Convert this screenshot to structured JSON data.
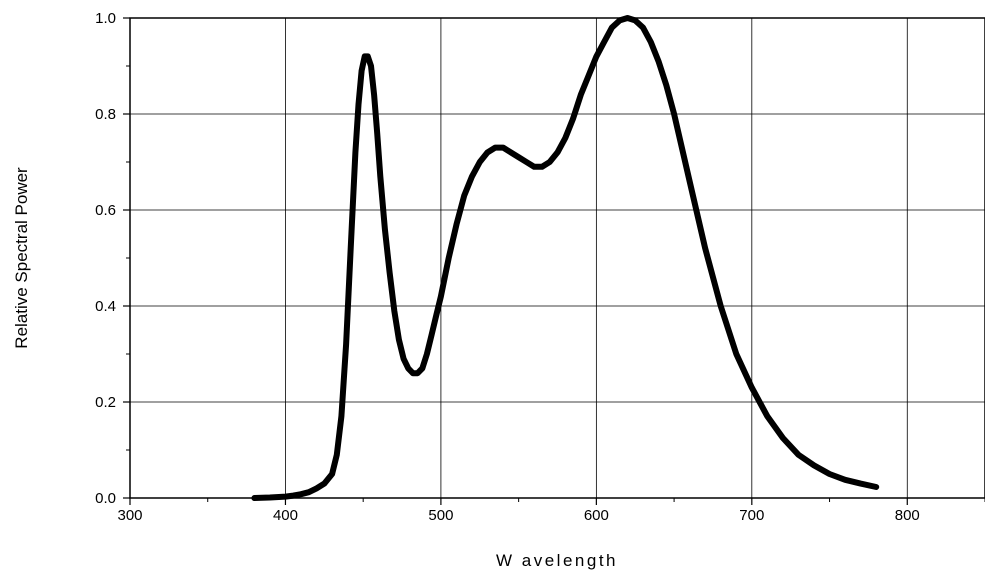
{
  "chart_data": {
    "type": "line",
    "title": "",
    "xlabel": "W avelength",
    "ylabel": "Relative Spectral Power",
    "xlim": [
      300,
      850
    ],
    "ylim": [
      0,
      1.0
    ],
    "xticks": [
      300,
      400,
      500,
      600,
      700,
      800
    ],
    "xtick_labels": [
      "300",
      "400",
      "500",
      "600",
      "700",
      "800"
    ],
    "yticks": [
      0,
      0.2,
      0.4,
      0.6,
      0.8,
      1.0
    ],
    "ytick_labels": [
      "0.0",
      "0.2",
      "0.4",
      "0.6",
      "0.8",
      "1.0"
    ],
    "grid": true,
    "legend": "none",
    "line_color": "#000000",
    "series": [
      {
        "x": [
          380,
          390,
          400,
          405,
          410,
          415,
          420,
          425,
          430,
          433,
          436,
          439,
          442,
          445,
          447,
          449,
          451,
          453,
          455,
          457,
          459,
          461,
          464,
          467,
          470,
          473,
          476,
          479,
          482,
          485,
          488,
          491,
          494,
          497,
          500,
          505,
          510,
          515,
          520,
          525,
          530,
          535,
          540,
          545,
          550,
          555,
          560,
          565,
          570,
          575,
          580,
          585,
          590,
          595,
          600,
          605,
          610,
          615,
          620,
          625,
          630,
          635,
          640,
          645,
          650,
          660,
          670,
          680,
          690,
          700,
          710,
          720,
          730,
          740,
          750,
          760,
          770,
          780
        ],
        "y": [
          0.0,
          0.001,
          0.003,
          0.005,
          0.008,
          0.012,
          0.02,
          0.03,
          0.05,
          0.09,
          0.17,
          0.32,
          0.52,
          0.72,
          0.82,
          0.89,
          0.92,
          0.92,
          0.9,
          0.84,
          0.76,
          0.67,
          0.56,
          0.47,
          0.39,
          0.33,
          0.29,
          0.27,
          0.26,
          0.26,
          0.27,
          0.3,
          0.34,
          0.38,
          0.42,
          0.5,
          0.57,
          0.63,
          0.67,
          0.7,
          0.72,
          0.73,
          0.73,
          0.72,
          0.71,
          0.7,
          0.69,
          0.69,
          0.7,
          0.72,
          0.75,
          0.79,
          0.84,
          0.88,
          0.92,
          0.95,
          0.98,
          0.995,
          1.0,
          0.995,
          0.98,
          0.95,
          0.91,
          0.86,
          0.8,
          0.66,
          0.52,
          0.4,
          0.3,
          0.23,
          0.17,
          0.125,
          0.09,
          0.068,
          0.05,
          0.038,
          0.03,
          0.023
        ]
      }
    ]
  }
}
